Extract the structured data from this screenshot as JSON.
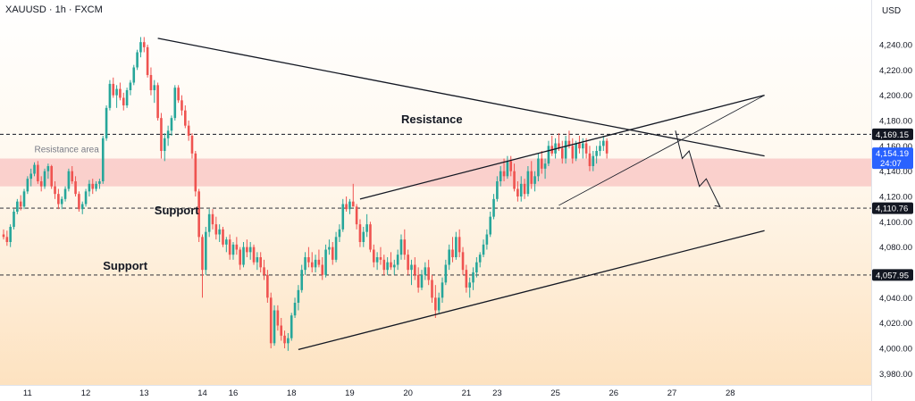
{
  "header": {
    "symbol_line": "XAUUSD · 1h · FXCM"
  },
  "chart_data": {
    "type": "candlestick",
    "currency": "USD",
    "ylim": [
      3970,
      4260
    ],
    "y_ticks": [
      "4,240.00",
      "4,220.00",
      "4,200.00",
      "4,180.00",
      "4,160.00",
      "4,140.00",
      "4,120.00",
      "4,100.00",
      "4,080.00",
      "4,060.00",
      "4,040.00",
      "4,020.00",
      "4,000.00",
      "3,980.00"
    ],
    "y_tick_values": [
      4240,
      4220,
      4200,
      4180,
      4160,
      4140,
      4120,
      4100,
      4080,
      4060,
      4040,
      4020,
      4000,
      3980
    ],
    "x_ticks": [
      {
        "label": "11",
        "t": 7
      },
      {
        "label": "12",
        "t": 24
      },
      {
        "label": "13",
        "t": 41
      },
      {
        "label": "14",
        "t": 58
      },
      {
        "label": "16",
        "t": 67
      },
      {
        "label": "18",
        "t": 84
      },
      {
        "label": "19",
        "t": 101
      },
      {
        "label": "20",
        "t": 118
      },
      {
        "label": "21",
        "t": 135
      },
      {
        "label": "23",
        "t": 144
      },
      {
        "label": "25",
        "t": 161
      },
      {
        "label": "26",
        "t": 178
      },
      {
        "label": "27",
        "t": 195
      },
      {
        "label": "28",
        "t": 212
      }
    ],
    "price_tags": [
      {
        "label": "4,169.15",
        "value": 4169.15,
        "style": "dark"
      },
      {
        "label": "4,154.19",
        "value": 4154.19,
        "style": "current"
      },
      {
        "label": "4,110.76",
        "value": 4110.76,
        "style": "dark"
      },
      {
        "label": "4,057.95",
        "value": 4057.95,
        "style": "dark"
      }
    ],
    "current_sub_label": "24:07",
    "resistance_zone": [
      4128,
      4150
    ],
    "levels": [
      4169.15,
      4110.76,
      4057.95
    ],
    "annotations": [
      {
        "text": "Resistance area",
        "t": 9,
        "y": 4155,
        "style": "muted"
      },
      {
        "text": "Resistance",
        "t": 116,
        "y": 4178,
        "style": "bold"
      },
      {
        "text": "Support",
        "t": 44,
        "y": 4106,
        "style": "bold"
      },
      {
        "text": "Support",
        "t": 29,
        "y": 4062,
        "style": "bold"
      }
    ],
    "trendlines": [
      {
        "t1": 45,
        "y1": 4245,
        "t2": 222,
        "y2": 4152,
        "w": 1.3
      },
      {
        "t1": 86,
        "y1": 3999,
        "t2": 222,
        "y2": 4093,
        "w": 1.3
      },
      {
        "t1": 104,
        "y1": 4118,
        "t2": 222,
        "y2": 4200,
        "w": 1.3
      },
      {
        "t1": 162,
        "y1": 4113,
        "t2": 222,
        "y2": 4200,
        "w": 0.8
      }
    ],
    "projection": [
      [
        196,
        4172
      ],
      [
        198,
        4150
      ],
      [
        200,
        4156
      ],
      [
        203,
        4128
      ],
      [
        205,
        4134
      ],
      [
        209,
        4112
      ]
    ],
    "candles": [
      [
        4090,
        4094,
        4086,
        4088
      ],
      [
        4088,
        4093,
        4081,
        4084
      ],
      [
        4084,
        4098,
        4080,
        4096
      ],
      [
        4096,
        4110,
        4094,
        4108
      ],
      [
        4108,
        4118,
        4106,
        4116
      ],
      [
        4116,
        4121,
        4109,
        4112
      ],
      [
        4112,
        4126,
        4110,
        4124
      ],
      [
        4124,
        4136,
        4122,
        4134
      ],
      [
        4134,
        4142,
        4128,
        4138
      ],
      [
        4138,
        4147,
        4136,
        4145
      ],
      [
        4145,
        4148,
        4130,
        4132
      ],
      [
        4132,
        4136,
        4124,
        4128
      ],
      [
        4128,
        4142,
        4126,
        4140
      ],
      [
        4140,
        4146,
        4134,
        4144
      ],
      [
        4144,
        4145,
        4126,
        4128
      ],
      [
        4128,
        4132,
        4118,
        4122
      ],
      [
        4122,
        4126,
        4110,
        4114
      ],
      [
        4114,
        4120,
        4110,
        4118
      ],
      [
        4118,
        4128,
        4116,
        4126
      ],
      [
        4126,
        4142,
        4124,
        4140
      ],
      [
        4140,
        4144,
        4130,
        4132
      ],
      [
        4132,
        4136,
        4120,
        4122
      ],
      [
        4122,
        4124,
        4108,
        4110
      ],
      [
        4110,
        4116,
        4106,
        4114
      ],
      [
        4114,
        4126,
        4112,
        4124
      ],
      [
        4124,
        4133,
        4120,
        4130
      ],
      [
        4130,
        4134,
        4122,
        4126
      ],
      [
        4126,
        4132,
        4124,
        4130
      ],
      [
        4130,
        4134,
        4126,
        4132
      ],
      [
        4132,
        4168,
        4130,
        4166
      ],
      [
        4166,
        4192,
        4164,
        4190
      ],
      [
        4190,
        4212,
        4188,
        4209
      ],
      [
        4209,
        4214,
        4198,
        4200
      ],
      [
        4200,
        4208,
        4190,
        4205
      ],
      [
        4205,
        4210,
        4196,
        4198
      ],
      [
        4198,
        4202,
        4188,
        4192
      ],
      [
        4192,
        4206,
        4190,
        4204
      ],
      [
        4204,
        4212,
        4200,
        4210
      ],
      [
        4210,
        4224,
        4208,
        4222
      ],
      [
        4222,
        4236,
        4220,
        4234
      ],
      [
        4234,
        4246,
        4230,
        4242
      ],
      [
        4242,
        4246,
        4234,
        4238
      ],
      [
        4238,
        4240,
        4214,
        4216
      ],
      [
        4216,
        4222,
        4200,
        4204
      ],
      [
        4204,
        4212,
        4194,
        4208
      ],
      [
        4208,
        4210,
        4180,
        4182
      ],
      [
        4182,
        4186,
        4150,
        4156
      ],
      [
        4156,
        4170,
        4148,
        4166
      ],
      [
        4166,
        4176,
        4160,
        4172
      ],
      [
        4172,
        4184,
        4168,
        4182
      ],
      [
        4182,
        4208,
        4180,
        4206
      ],
      [
        4206,
        4208,
        4194,
        4196
      ],
      [
        4196,
        4200,
        4184,
        4188
      ],
      [
        4188,
        4192,
        4174,
        4176
      ],
      [
        4176,
        4180,
        4164,
        4168
      ],
      [
        4168,
        4170,
        4150,
        4154
      ],
      [
        4154,
        4156,
        4120,
        4124
      ],
      [
        4124,
        4126,
        4084,
        4088
      ],
      [
        4088,
        4090,
        4040,
        4062
      ],
      [
        4062,
        4096,
        4058,
        4092
      ],
      [
        4092,
        4110,
        4088,
        4106
      ],
      [
        4106,
        4110,
        4094,
        4098
      ],
      [
        4098,
        4104,
        4086,
        4090
      ],
      [
        4090,
        4098,
        4084,
        4094
      ],
      [
        4094,
        4096,
        4080,
        4082
      ],
      [
        4082,
        4088,
        4076,
        4086
      ],
      [
        4086,
        4090,
        4070,
        4074
      ],
      [
        4074,
        4084,
        4070,
        4082
      ],
      [
        4082,
        4088,
        4074,
        4078
      ],
      [
        4078,
        4080,
        4062,
        4066
      ],
      [
        4066,
        4084,
        4064,
        4080
      ],
      [
        4080,
        4086,
        4072,
        4076
      ],
      [
        4076,
        4084,
        4070,
        4080
      ],
      [
        4080,
        4082,
        4066,
        4068
      ],
      [
        4068,
        4076,
        4062,
        4072
      ],
      [
        4072,
        4076,
        4060,
        4064
      ],
      [
        4064,
        4070,
        4054,
        4058
      ],
      [
        4058,
        4062,
        4036,
        4040
      ],
      [
        4040,
        4044,
        4000,
        4004
      ],
      [
        4004,
        4034,
        4002,
        4030
      ],
      [
        4030,
        4034,
        4014,
        4018
      ],
      [
        4018,
        4024,
        4006,
        4010
      ],
      [
        4010,
        4014,
        4000,
        4004
      ],
      [
        4004,
        4012,
        3998,
        4008
      ],
      [
        4008,
        4028,
        4006,
        4026
      ],
      [
        4026,
        4040,
        4024,
        4036
      ],
      [
        4036,
        4050,
        4030,
        4046
      ],
      [
        4046,
        4066,
        4044,
        4062
      ],
      [
        4062,
        4076,
        4058,
        4072
      ],
      [
        4072,
        4080,
        4064,
        4068
      ],
      [
        4068,
        4076,
        4060,
        4064
      ],
      [
        4064,
        4074,
        4060,
        4070
      ],
      [
        4070,
        4078,
        4064,
        4066
      ],
      [
        4066,
        4072,
        4054,
        4058
      ],
      [
        4058,
        4082,
        4056,
        4078
      ],
      [
        4078,
        4086,
        4074,
        4080
      ],
      [
        4080,
        4084,
        4066,
        4070
      ],
      [
        4070,
        4092,
        4068,
        4088
      ],
      [
        4088,
        4098,
        4084,
        4094
      ],
      [
        4094,
        4118,
        4092,
        4114
      ],
      [
        4114,
        4120,
        4108,
        4110
      ],
      [
        4110,
        4118,
        4106,
        4116
      ],
      [
        4116,
        4130,
        4112,
        4112
      ],
      [
        4112,
        4114,
        4094,
        4098
      ],
      [
        4098,
        4102,
        4080,
        4084
      ],
      [
        4084,
        4096,
        4080,
        4092
      ],
      [
        4092,
        4106,
        4088,
        4098
      ],
      [
        4098,
        4100,
        4076,
        4078
      ],
      [
        4078,
        4082,
        4064,
        4068
      ],
      [
        4068,
        4076,
        4062,
        4072
      ],
      [
        4072,
        4080,
        4066,
        4070
      ],
      [
        4070,
        4074,
        4058,
        4062
      ],
      [
        4062,
        4072,
        4058,
        4068
      ],
      [
        4068,
        4076,
        4062,
        4064
      ],
      [
        4064,
        4070,
        4058,
        4066
      ],
      [
        4066,
        4078,
        4062,
        4074
      ],
      [
        4074,
        4090,
        4070,
        4086
      ],
      [
        4086,
        4094,
        4070,
        4074
      ],
      [
        4074,
        4078,
        4058,
        4062
      ],
      [
        4062,
        4070,
        4050,
        4066
      ],
      [
        4066,
        4072,
        4054,
        4058
      ],
      [
        4058,
        4064,
        4044,
        4048
      ],
      [
        4048,
        4062,
        4046,
        4058
      ],
      [
        4058,
        4068,
        4054,
        4064
      ],
      [
        4064,
        4070,
        4050,
        4054
      ],
      [
        4054,
        4058,
        4036,
        4040
      ],
      [
        4040,
        4050,
        4024,
        4030
      ],
      [
        4030,
        4044,
        4028,
        4040
      ],
      [
        4040,
        4056,
        4036,
        4052
      ],
      [
        4052,
        4070,
        4050,
        4066
      ],
      [
        4066,
        4082,
        4062,
        4078
      ],
      [
        4078,
        4088,
        4068,
        4072
      ],
      [
        4072,
        4092,
        4070,
        4088
      ],
      [
        4088,
        4094,
        4072,
        4076
      ],
      [
        4076,
        4080,
        4058,
        4062
      ],
      [
        4062,
        4066,
        4044,
        4048
      ],
      [
        4048,
        4056,
        4040,
        4052
      ],
      [
        4052,
        4064,
        4046,
        4060
      ],
      [
        4060,
        4072,
        4056,
        4068
      ],
      [
        4068,
        4076,
        4064,
        4074
      ],
      [
        4074,
        4086,
        4072,
        4082
      ],
      [
        4082,
        4094,
        4078,
        4090
      ],
      [
        4090,
        4108,
        4088,
        4104
      ],
      [
        4104,
        4122,
        4102,
        4118
      ],
      [
        4118,
        4136,
        4116,
        4132
      ],
      [
        4132,
        4144,
        4128,
        4140
      ],
      [
        4140,
        4150,
        4132,
        4136
      ],
      [
        4136,
        4152,
        4134,
        4148
      ],
      [
        4148,
        4152,
        4136,
        4140
      ],
      [
        4140,
        4146,
        4124,
        4126
      ],
      [
        4126,
        4132,
        4116,
        4120
      ],
      [
        4120,
        4136,
        4116,
        4130
      ],
      [
        4130,
        4134,
        4118,
        4122
      ],
      [
        4122,
        4144,
        4120,
        4140
      ],
      [
        4140,
        4148,
        4126,
        4130
      ],
      [
        4130,
        4140,
        4124,
        4136
      ],
      [
        4136,
        4154,
        4132,
        4150
      ],
      [
        4150,
        4156,
        4138,
        4142
      ],
      [
        4142,
        4150,
        4134,
        4146
      ],
      [
        4146,
        4164,
        4144,
        4160
      ],
      [
        4160,
        4168,
        4152,
        4154
      ],
      [
        4154,
        4166,
        4150,
        4162
      ],
      [
        4162,
        4170,
        4156,
        4158
      ],
      [
        4158,
        4164,
        4146,
        4150
      ],
      [
        4150,
        4168,
        4146,
        4164
      ],
      [
        4164,
        4172,
        4158,
        4160
      ],
      [
        4160,
        4166,
        4146,
        4150
      ],
      [
        4150,
        4164,
        4148,
        4162
      ],
      [
        4162,
        4168,
        4154,
        4158
      ],
      [
        4158,
        4166,
        4150,
        4162
      ],
      [
        4162,
        4166,
        4150,
        4154
      ],
      [
        4154,
        4160,
        4140,
        4144
      ],
      [
        4144,
        4156,
        4140,
        4152
      ],
      [
        4152,
        4160,
        4146,
        4156
      ],
      [
        4156,
        4164,
        4152,
        4160
      ],
      [
        4160,
        4168,
        4156,
        4164
      ],
      [
        4164,
        4166,
        4150,
        4154
      ]
    ]
  }
}
